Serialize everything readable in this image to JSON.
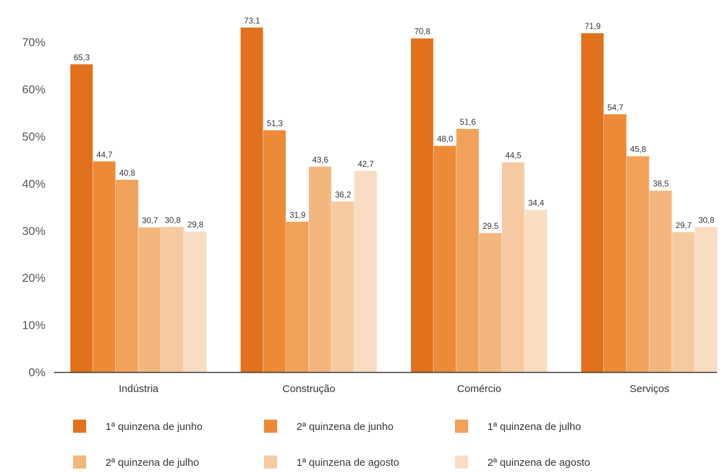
{
  "chart_data": {
    "type": "bar",
    "title": "",
    "xlabel": "",
    "ylabel": "",
    "ylim": [
      0,
      75
    ],
    "yticks": [
      "0%",
      "10%",
      "20%",
      "30%",
      "40%",
      "50%",
      "60%",
      "70%"
    ],
    "ytick_values": [
      0,
      10,
      20,
      30,
      40,
      50,
      60,
      70
    ],
    "grid": false,
    "legend_position": "bottom",
    "categories": [
      "Indústria",
      "Construção",
      "Comércio",
      "Serviços"
    ],
    "series": [
      {
        "name": "1ª quinzena de junho",
        "color": "#E2711D",
        "values": [
          65.3,
          73.1,
          70.8,
          71.9
        ],
        "labels": [
          "65,3",
          "73,1",
          "70,8",
          "71,9"
        ]
      },
      {
        "name": "2ª quinzena de junho",
        "color": "#EC8A36",
        "values": [
          44.7,
          51.3,
          48.0,
          54.7
        ],
        "labels": [
          "44,7",
          "51,3",
          "48,0",
          "54,7"
        ]
      },
      {
        "name": "1ª quinzena de julho",
        "color": "#F0A25A",
        "values": [
          40.8,
          31.9,
          51.6,
          45.8
        ],
        "labels": [
          "40,8",
          "31,9",
          "51,6",
          "45,8"
        ]
      },
      {
        "name": "2ª quinzena de julho",
        "color": "#F3B77E",
        "values": [
          30.7,
          43.6,
          29.5,
          38.5
        ],
        "labels": [
          "30,7",
          "43,6",
          "29,5",
          "38,5"
        ]
      },
      {
        "name": "1ª quinzena de agosto",
        "color": "#F6CAA0",
        "values": [
          30.8,
          36.2,
          44.5,
          29.7
        ],
        "labels": [
          "30,8",
          "36,2",
          "44,5",
          "29,7"
        ]
      },
      {
        "name": "2ª quinzena de agosto",
        "color": "#F9DDC3",
        "values": [
          29.8,
          42.7,
          34.4,
          30.8
        ],
        "labels": [
          "29,8",
          "42,7",
          "34,4",
          "30,8"
        ]
      }
    ]
  }
}
